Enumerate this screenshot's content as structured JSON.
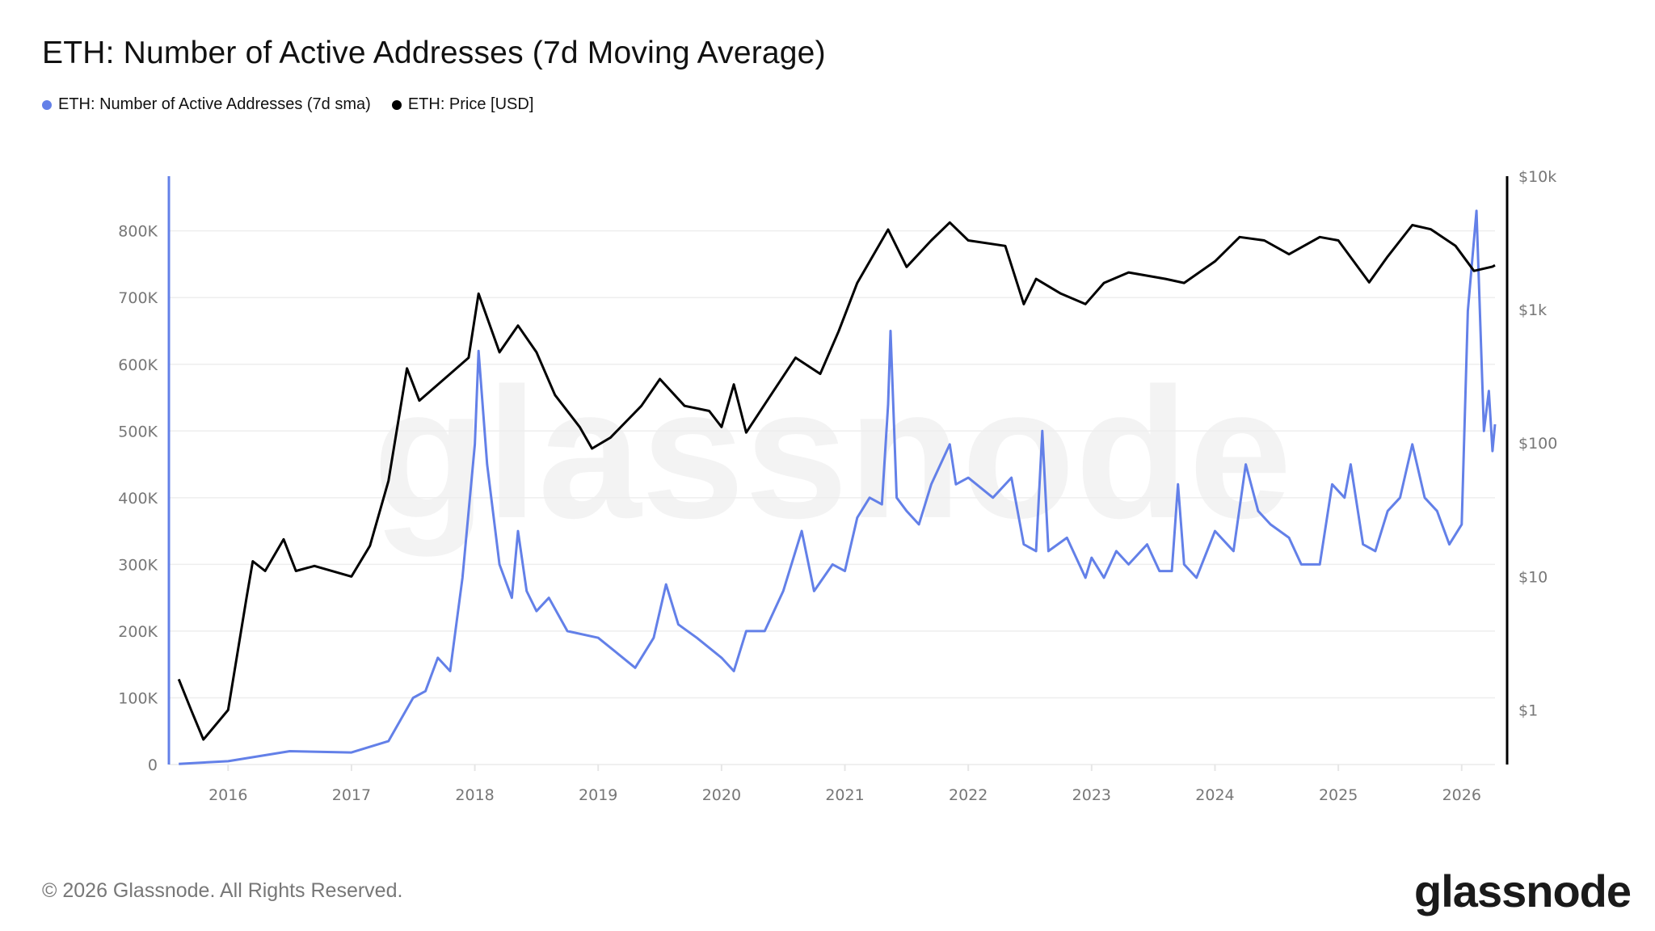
{
  "header": {
    "title": "ETH: Number of Active Addresses (7d Moving Average)"
  },
  "legend": [
    {
      "label": "ETH: Number of Active Addresses (7d sma)",
      "color": "#6380e8"
    },
    {
      "label": "ETH: Price [USD]",
      "color": "#000000"
    }
  ],
  "footer": {
    "copyright": "© 2026 Glassnode. All Rights Reserved.",
    "logo": "glassnode",
    "watermark": "glassnode"
  },
  "chart_data": {
    "type": "line",
    "title": "ETH: Number of Active Addresses (7d Moving Average)",
    "xlabel": "",
    "xlim": [
      2015.52,
      2026.27
    ],
    "x_ticks": [
      2016,
      2017,
      2018,
      2019,
      2020,
      2021,
      2022,
      2023,
      2024,
      2025,
      2026
    ],
    "x_tick_labels": [
      "2016",
      "2017",
      "2018",
      "2019",
      "2020",
      "2021",
      "2022",
      "2023",
      "2024",
      "2025",
      "2026"
    ],
    "y_left": {
      "ylim": [
        0,
        882000
      ],
      "ticks": [
        0,
        100000,
        200000,
        300000,
        400000,
        500000,
        600000,
        700000,
        800000
      ],
      "tick_labels": [
        "0",
        "100K",
        "200K",
        "300K",
        "400K",
        "500K",
        "600K",
        "700K",
        "800K"
      ]
    },
    "y_right": {
      "scale": "log",
      "ylim": [
        0.39,
        10000
      ],
      "ticks": [
        1,
        10,
        100,
        1000,
        10000
      ],
      "tick_labels": [
        "$1",
        "$10",
        "$100",
        "$1k",
        "$10k"
      ]
    },
    "grid": true,
    "legend_position": "top-left",
    "series": [
      {
        "name": "ETH: Number of Active Addresses (7d sma)",
        "axis": "left",
        "color": "#6380e8",
        "points": [
          [
            2015.6,
            1000
          ],
          [
            2016.0,
            5000
          ],
          [
            2016.5,
            20000
          ],
          [
            2017.0,
            18000
          ],
          [
            2017.3,
            35000
          ],
          [
            2017.5,
            100000
          ],
          [
            2017.6,
            110000
          ],
          [
            2017.7,
            160000
          ],
          [
            2017.8,
            140000
          ],
          [
            2017.9,
            280000
          ],
          [
            2018.0,
            480000
          ],
          [
            2018.03,
            620000
          ],
          [
            2018.1,
            450000
          ],
          [
            2018.2,
            300000
          ],
          [
            2018.3,
            250000
          ],
          [
            2018.35,
            350000
          ],
          [
            2018.42,
            260000
          ],
          [
            2018.5,
            230000
          ],
          [
            2018.6,
            250000
          ],
          [
            2018.75,
            200000
          ],
          [
            2019.0,
            190000
          ],
          [
            2019.2,
            160000
          ],
          [
            2019.3,
            145000
          ],
          [
            2019.45,
            190000
          ],
          [
            2019.55,
            270000
          ],
          [
            2019.65,
            210000
          ],
          [
            2019.8,
            190000
          ],
          [
            2020.0,
            160000
          ],
          [
            2020.1,
            140000
          ],
          [
            2020.2,
            200000
          ],
          [
            2020.35,
            200000
          ],
          [
            2020.5,
            260000
          ],
          [
            2020.65,
            350000
          ],
          [
            2020.75,
            260000
          ],
          [
            2020.9,
            300000
          ],
          [
            2021.0,
            290000
          ],
          [
            2021.1,
            370000
          ],
          [
            2021.2,
            400000
          ],
          [
            2021.3,
            390000
          ],
          [
            2021.35,
            540000
          ],
          [
            2021.37,
            650000
          ],
          [
            2021.42,
            400000
          ],
          [
            2021.5,
            380000
          ],
          [
            2021.6,
            360000
          ],
          [
            2021.7,
            420000
          ],
          [
            2021.85,
            480000
          ],
          [
            2021.9,
            420000
          ],
          [
            2022.0,
            430000
          ],
          [
            2022.2,
            400000
          ],
          [
            2022.35,
            430000
          ],
          [
            2022.45,
            330000
          ],
          [
            2022.55,
            320000
          ],
          [
            2022.6,
            500000
          ],
          [
            2022.65,
            320000
          ],
          [
            2022.8,
            340000
          ],
          [
            2022.95,
            280000
          ],
          [
            2023.0,
            310000
          ],
          [
            2023.1,
            280000
          ],
          [
            2023.2,
            320000
          ],
          [
            2023.3,
            300000
          ],
          [
            2023.45,
            330000
          ],
          [
            2023.55,
            290000
          ],
          [
            2023.65,
            290000
          ],
          [
            2023.7,
            420000
          ],
          [
            2023.75,
            300000
          ],
          [
            2023.85,
            280000
          ],
          [
            2024.0,
            350000
          ],
          [
            2024.15,
            320000
          ],
          [
            2024.25,
            450000
          ],
          [
            2024.35,
            380000
          ],
          [
            2024.45,
            360000
          ],
          [
            2024.6,
            340000
          ],
          [
            2024.7,
            300000
          ],
          [
            2024.85,
            300000
          ],
          [
            2024.95,
            420000
          ],
          [
            2025.05,
            400000
          ],
          [
            2025.1,
            450000
          ],
          [
            2025.2,
            330000
          ],
          [
            2025.3,
            320000
          ],
          [
            2025.4,
            380000
          ],
          [
            2025.5,
            400000
          ],
          [
            2025.6,
            480000
          ],
          [
            2025.7,
            400000
          ],
          [
            2025.8,
            380000
          ],
          [
            2025.9,
            330000
          ],
          [
            2026.0,
            360000
          ],
          [
            2026.05,
            680000
          ],
          [
            2026.12,
            830000
          ],
          [
            2026.18,
            500000
          ],
          [
            2026.22,
            560000
          ],
          [
            2026.25,
            470000
          ],
          [
            2026.27,
            510000
          ]
        ]
      },
      {
        "name": "ETH: Price [USD]",
        "axis": "right",
        "color": "#000000",
        "points": [
          [
            2015.6,
            1.7
          ],
          [
            2015.7,
            1.0
          ],
          [
            2015.8,
            0.6
          ],
          [
            2016.0,
            1.0
          ],
          [
            2016.15,
            7
          ],
          [
            2016.2,
            13
          ],
          [
            2016.3,
            11
          ],
          [
            2016.45,
            19
          ],
          [
            2016.55,
            11
          ],
          [
            2016.7,
            12
          ],
          [
            2017.0,
            10
          ],
          [
            2017.15,
            17
          ],
          [
            2017.3,
            52
          ],
          [
            2017.45,
            363
          ],
          [
            2017.55,
            208
          ],
          [
            2017.8,
            330
          ],
          [
            2017.95,
            436
          ],
          [
            2018.03,
            1318
          ],
          [
            2018.2,
            479
          ],
          [
            2018.35,
            760
          ],
          [
            2018.5,
            479
          ],
          [
            2018.65,
            229
          ],
          [
            2018.85,
            132
          ],
          [
            2018.95,
            91
          ],
          [
            2019.1,
            110
          ],
          [
            2019.35,
            190
          ],
          [
            2019.5,
            302
          ],
          [
            2019.7,
            190
          ],
          [
            2019.9,
            174
          ],
          [
            2020.0,
            132
          ],
          [
            2020.1,
            275
          ],
          [
            2020.2,
            120
          ],
          [
            2020.4,
            229
          ],
          [
            2020.6,
            436
          ],
          [
            2020.8,
            330
          ],
          [
            2020.95,
            690
          ],
          [
            2021.1,
            1585
          ],
          [
            2021.35,
            3981
          ],
          [
            2021.5,
            2089
          ],
          [
            2021.7,
            3300
          ],
          [
            2021.85,
            4500
          ],
          [
            2022.0,
            3300
          ],
          [
            2022.3,
            3000
          ],
          [
            2022.45,
            1100
          ],
          [
            2022.55,
            1700
          ],
          [
            2022.75,
            1318
          ],
          [
            2022.95,
            1100
          ],
          [
            2023.1,
            1585
          ],
          [
            2023.3,
            1900
          ],
          [
            2023.6,
            1700
          ],
          [
            2023.75,
            1585
          ],
          [
            2024.0,
            2300
          ],
          [
            2024.2,
            3500
          ],
          [
            2024.4,
            3300
          ],
          [
            2024.6,
            2600
          ],
          [
            2024.85,
            3500
          ],
          [
            2025.0,
            3300
          ],
          [
            2025.25,
            1600
          ],
          [
            2025.4,
            2500
          ],
          [
            2025.6,
            4300
          ],
          [
            2025.75,
            4000
          ],
          [
            2025.95,
            3000
          ],
          [
            2026.1,
            1950
          ],
          [
            2026.25,
            2100
          ],
          [
            2026.27,
            2150
          ]
        ]
      }
    ]
  }
}
